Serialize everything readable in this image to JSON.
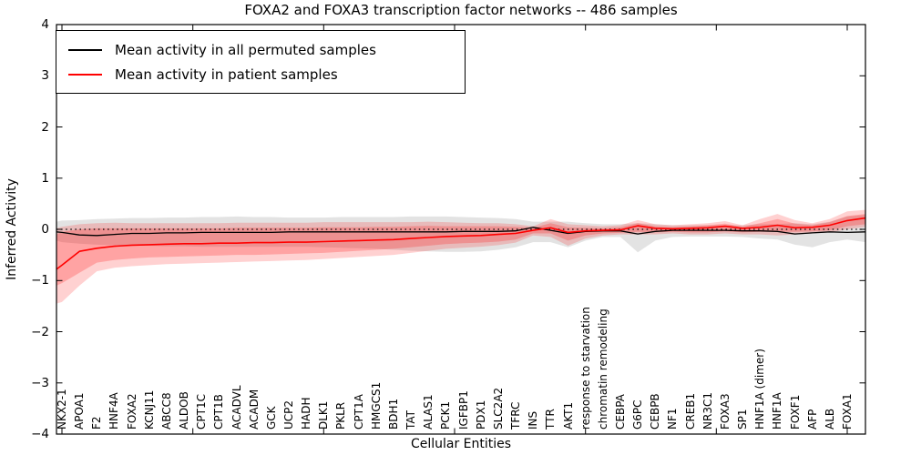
{
  "title": "FOXA2 and FOXA3 transcription factor networks -- 486 samples",
  "axes": {
    "ylabel": "Inferred Activity",
    "xlabel": "Cellular Entities",
    "ytick_labels": [
      "4",
      "3",
      "2",
      "1",
      "0",
      "−1",
      "−2",
      "−3",
      "−4"
    ],
    "yticks": [
      4,
      3,
      2,
      1,
      0,
      -1,
      -2,
      -3,
      -4
    ]
  },
  "legend": {
    "items": [
      {
        "label": "Mean activity in all permuted samples",
        "color": "#000000"
      },
      {
        "label": "Mean activity in patient samples",
        "color": "#ff0000"
      }
    ]
  },
  "chart_data": {
    "type": "line",
    "title": "FOXA2 and FOXA3 transcription factor networks -- 486 samples",
    "xlabel": "Cellular Entities",
    "ylabel": "Inferred Activity",
    "ylim": [
      -4,
      4
    ],
    "grid": false,
    "legend_position": "upper left",
    "zero_reference_line": 0,
    "x_tick_mark_positions": [
      0,
      7.5,
      15,
      22.5,
      30,
      37.5,
      45
    ],
    "categories": [
      "NKX2-1",
      "APOA1",
      "F2",
      "HNF4A",
      "FOXA2",
      "KCNJ11",
      "ABCC8",
      "ALDOB",
      "CPT1C",
      "CPT1B",
      "ACADVL",
      "ACADM",
      "GCK",
      "UCP2",
      "HADH",
      "DLK1",
      "PKLR",
      "CPT1A",
      "HMGCS1",
      "BDH1",
      "TAT",
      "ALAS1",
      "PCK1",
      "IGFBP1",
      "PDX1",
      "SLC2A2",
      "TFRC",
      "INS",
      "TTR",
      "AKT1",
      "response to starvation",
      "chromatin remodeling",
      "CEBPA",
      "G6PC",
      "CEBPB",
      "NF1",
      "CREB1",
      "NR3C1",
      "FOXA3",
      "SP1",
      "HNF1A (dimer)",
      "HNF1A",
      "FOXF1",
      "AFP",
      "ALB",
      "FOXA1"
    ],
    "series": [
      {
        "name": "Mean activity in all permuted samples",
        "color": "#000000",
        "width": 1.3,
        "values": [
          -0.06,
          -0.11,
          -0.12,
          -0.1,
          -0.08,
          -0.08,
          -0.07,
          -0.07,
          -0.06,
          -0.06,
          -0.06,
          -0.06,
          -0.06,
          -0.05,
          -0.05,
          -0.05,
          -0.05,
          -0.05,
          -0.05,
          -0.05,
          -0.05,
          -0.05,
          -0.05,
          -0.04,
          -0.04,
          -0.04,
          -0.03,
          0.04,
          -0.02,
          -0.08,
          -0.04,
          -0.03,
          -0.03,
          -0.09,
          -0.04,
          -0.02,
          -0.02,
          -0.02,
          -0.02,
          -0.03,
          -0.03,
          -0.04,
          -0.09,
          -0.07,
          -0.05,
          -0.06
        ],
        "edge_left": -0.05,
        "edge_right": -0.05
      },
      {
        "name": "Mean activity in patient samples",
        "color": "#ff0000",
        "width": 1.6,
        "values": [
          -0.7,
          -0.43,
          -0.37,
          -0.33,
          -0.31,
          -0.3,
          -0.29,
          -0.28,
          -0.28,
          -0.27,
          -0.27,
          -0.26,
          -0.26,
          -0.25,
          -0.25,
          -0.24,
          -0.23,
          -0.22,
          -0.21,
          -0.2,
          -0.18,
          -0.16,
          -0.14,
          -0.13,
          -0.12,
          -0.1,
          -0.08,
          -0.02,
          0.03,
          -0.06,
          -0.03,
          -0.02,
          -0.01,
          0.07,
          0.02,
          0.01,
          0.02,
          0.03,
          0.06,
          0.02,
          0.04,
          0.08,
          0.03,
          0.04,
          0.08,
          0.17
        ],
        "edge_left": -0.78,
        "edge_right": 0.22
      }
    ],
    "bands": [
      {
        "name": "permuted samples range",
        "color": "rgba(0,0,0,0.11)",
        "hi": [
          0.17,
          0.18,
          0.2,
          0.21,
          0.22,
          0.22,
          0.23,
          0.23,
          0.24,
          0.24,
          0.25,
          0.24,
          0.24,
          0.23,
          0.23,
          0.23,
          0.24,
          0.24,
          0.24,
          0.24,
          0.25,
          0.25,
          0.25,
          0.24,
          0.23,
          0.22,
          0.2,
          0.15,
          0.15,
          0.15,
          0.12,
          0.1,
          0.1,
          0.12,
          0.1,
          0.08,
          0.08,
          0.08,
          0.08,
          0.08,
          0.1,
          0.1,
          0.12,
          0.1,
          0.15,
          0.25
        ],
        "lo": [
          -0.25,
          -0.28,
          -0.3,
          -0.31,
          -0.32,
          -0.32,
          -0.33,
          -0.33,
          -0.34,
          -0.34,
          -0.34,
          -0.34,
          -0.34,
          -0.34,
          -0.34,
          -0.35,
          -0.36,
          -0.37,
          -0.38,
          -0.4,
          -0.42,
          -0.43,
          -0.44,
          -0.44,
          -0.43,
          -0.4,
          -0.35,
          -0.25,
          -0.25,
          -0.35,
          -0.22,
          -0.15,
          -0.15,
          -0.45,
          -0.22,
          -0.15,
          -0.14,
          -0.14,
          -0.14,
          -0.15,
          -0.18,
          -0.2,
          -0.3,
          -0.35,
          -0.25,
          -0.2
        ],
        "edge_left": {
          "hi": 0.15,
          "lo": -0.22
        },
        "edge_right": {
          "hi": 0.28,
          "lo": -0.25
        }
      },
      {
        "name": "patient samples outer range",
        "color": "rgba(255,0,0,0.18)",
        "hi": [
          0.05,
          0.1,
          0.12,
          0.13,
          0.12,
          0.12,
          0.12,
          0.12,
          0.12,
          0.12,
          0.13,
          0.13,
          0.13,
          0.13,
          0.13,
          0.14,
          0.14,
          0.14,
          0.14,
          0.14,
          0.14,
          0.15,
          0.14,
          0.13,
          0.12,
          0.12,
          0.1,
          0.06,
          0.2,
          0.1,
          0.08,
          0.06,
          0.08,
          0.18,
          0.1,
          0.08,
          0.1,
          0.12,
          0.16,
          0.08,
          0.2,
          0.3,
          0.18,
          0.12,
          0.2,
          0.35
        ],
        "lo": [
          -1.42,
          -1.1,
          -0.82,
          -0.75,
          -0.72,
          -0.7,
          -0.68,
          -0.67,
          -0.66,
          -0.65,
          -0.64,
          -0.63,
          -0.62,
          -0.61,
          -0.6,
          -0.58,
          -0.56,
          -0.54,
          -0.52,
          -0.5,
          -0.46,
          -0.42,
          -0.38,
          -0.36,
          -0.34,
          -0.31,
          -0.26,
          -0.12,
          -0.15,
          -0.32,
          -0.18,
          -0.12,
          -0.1,
          -0.1,
          -0.1,
          -0.08,
          -0.1,
          -0.1,
          -0.08,
          -0.1,
          -0.1,
          -0.12,
          -0.1,
          -0.08,
          -0.06,
          0.0
        ],
        "edge_left": {
          "hi": 0.02,
          "lo": -1.45
        },
        "edge_right": {
          "hi": 0.38,
          "lo": 0.05
        }
      },
      {
        "name": "patient samples inner range",
        "color": "rgba(255,0,0,0.22)",
        "hi": [
          -0.05,
          0.0,
          0.02,
          0.02,
          0.02,
          0.02,
          0.02,
          0.02,
          0.02,
          0.02,
          0.03,
          0.03,
          0.03,
          0.03,
          0.03,
          0.04,
          0.04,
          0.04,
          0.05,
          0.05,
          0.06,
          0.07,
          0.06,
          0.06,
          0.06,
          0.06,
          0.05,
          0.03,
          0.12,
          0.04,
          0.03,
          0.02,
          0.04,
          0.12,
          0.06,
          0.04,
          0.06,
          0.08,
          0.11,
          0.05,
          0.12,
          0.2,
          0.11,
          0.08,
          0.14,
          0.26
        ],
        "lo": [
          -1.05,
          -0.85,
          -0.65,
          -0.6,
          -0.57,
          -0.55,
          -0.54,
          -0.53,
          -0.52,
          -0.51,
          -0.5,
          -0.5,
          -0.49,
          -0.48,
          -0.47,
          -0.46,
          -0.44,
          -0.42,
          -0.4,
          -0.38,
          -0.35,
          -0.32,
          -0.29,
          -0.27,
          -0.26,
          -0.24,
          -0.2,
          -0.08,
          -0.08,
          -0.22,
          -0.12,
          -0.08,
          -0.07,
          -0.05,
          -0.06,
          -0.05,
          -0.06,
          -0.06,
          -0.04,
          -0.06,
          -0.05,
          -0.05,
          -0.05,
          -0.04,
          -0.02,
          0.06
        ],
        "edge_left": {
          "hi": -0.1,
          "lo": -1.1
        },
        "edge_right": {
          "hi": 0.3,
          "lo": 0.1
        }
      }
    ]
  }
}
